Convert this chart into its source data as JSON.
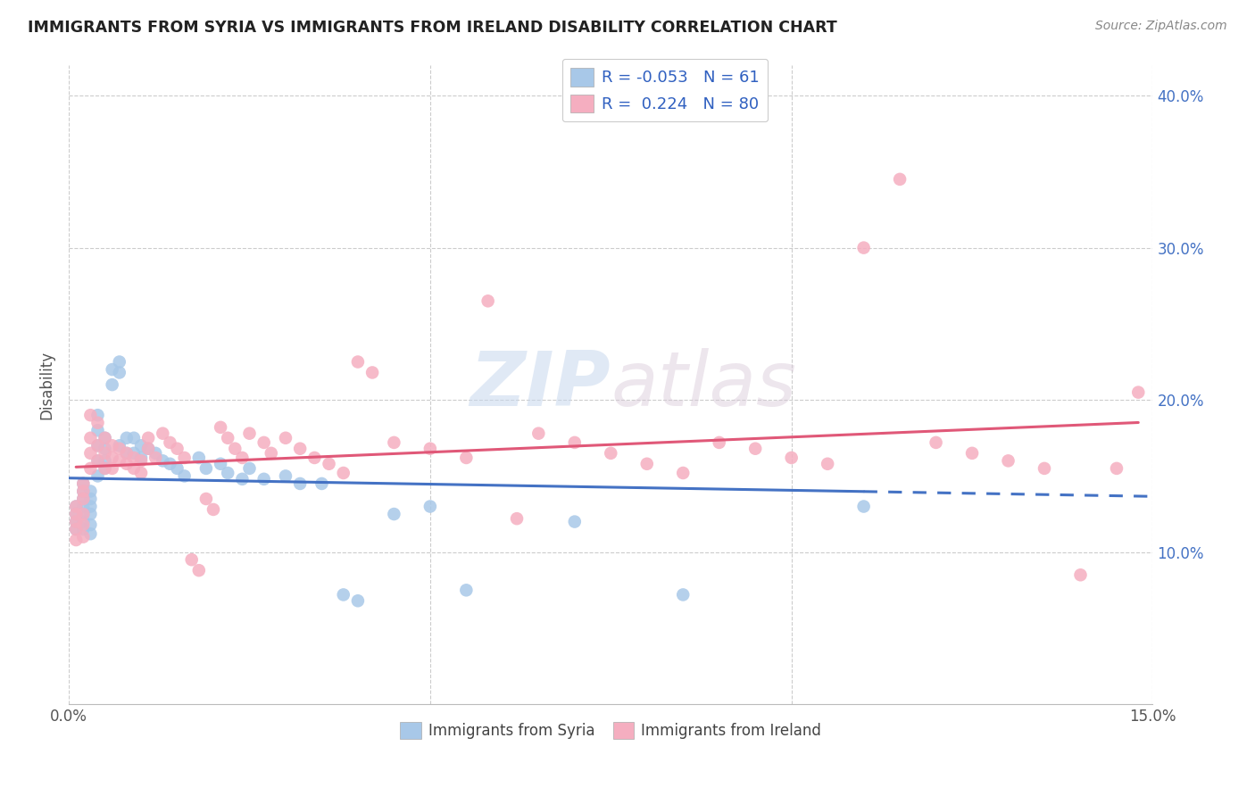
{
  "title": "IMMIGRANTS FROM SYRIA VS IMMIGRANTS FROM IRELAND DISABILITY CORRELATION CHART",
  "source": "Source: ZipAtlas.com",
  "ylabel": "Disability",
  "xlim": [
    0.0,
    0.15
  ],
  "ylim": [
    0.0,
    0.42
  ],
  "syria_color": "#a8c8e8",
  "ireland_color": "#f5aec0",
  "syria_line_color": "#4472c4",
  "ireland_line_color": "#e05878",
  "watermark_text": "ZIPatlas",
  "legend_R_syria": "-0.053",
  "legend_N_syria": "61",
  "legend_R_ireland": "0.224",
  "legend_N_ireland": "80",
  "syria_scatter_x": [
    0.001,
    0.001,
    0.001,
    0.001,
    0.002,
    0.002,
    0.002,
    0.002,
    0.002,
    0.002,
    0.002,
    0.003,
    0.003,
    0.003,
    0.003,
    0.003,
    0.003,
    0.004,
    0.004,
    0.004,
    0.004,
    0.004,
    0.005,
    0.005,
    0.005,
    0.005,
    0.006,
    0.006,
    0.007,
    0.007,
    0.007,
    0.008,
    0.008,
    0.009,
    0.009,
    0.01,
    0.01,
    0.011,
    0.012,
    0.013,
    0.014,
    0.015,
    0.016,
    0.018,
    0.019,
    0.021,
    0.022,
    0.024,
    0.025,
    0.027,
    0.03,
    0.032,
    0.035,
    0.038,
    0.04,
    0.045,
    0.05,
    0.055,
    0.07,
    0.085,
    0.11
  ],
  "syria_scatter_y": [
    0.13,
    0.125,
    0.12,
    0.115,
    0.145,
    0.14,
    0.135,
    0.13,
    0.125,
    0.12,
    0.115,
    0.14,
    0.135,
    0.13,
    0.125,
    0.118,
    0.112,
    0.19,
    0.18,
    0.17,
    0.16,
    0.15,
    0.175,
    0.168,
    0.16,
    0.155,
    0.22,
    0.21,
    0.225,
    0.218,
    0.17,
    0.175,
    0.165,
    0.175,
    0.165,
    0.17,
    0.162,
    0.168,
    0.165,
    0.16,
    0.158,
    0.155,
    0.15,
    0.162,
    0.155,
    0.158,
    0.152,
    0.148,
    0.155,
    0.148,
    0.15,
    0.145,
    0.145,
    0.072,
    0.068,
    0.125,
    0.13,
    0.075,
    0.12,
    0.072,
    0.13
  ],
  "ireland_scatter_x": [
    0.001,
    0.001,
    0.001,
    0.001,
    0.001,
    0.002,
    0.002,
    0.002,
    0.002,
    0.002,
    0.002,
    0.003,
    0.003,
    0.003,
    0.003,
    0.004,
    0.004,
    0.004,
    0.005,
    0.005,
    0.005,
    0.006,
    0.006,
    0.006,
    0.007,
    0.007,
    0.008,
    0.008,
    0.009,
    0.009,
    0.01,
    0.01,
    0.011,
    0.011,
    0.012,
    0.013,
    0.014,
    0.015,
    0.016,
    0.017,
    0.018,
    0.019,
    0.02,
    0.021,
    0.022,
    0.023,
    0.024,
    0.025,
    0.027,
    0.028,
    0.03,
    0.032,
    0.034,
    0.036,
    0.038,
    0.04,
    0.042,
    0.045,
    0.05,
    0.055,
    0.058,
    0.062,
    0.065,
    0.07,
    0.075,
    0.08,
    0.085,
    0.09,
    0.095,
    0.1,
    0.105,
    0.11,
    0.115,
    0.12,
    0.125,
    0.13,
    0.135,
    0.14,
    0.145,
    0.148
  ],
  "ireland_scatter_y": [
    0.13,
    0.125,
    0.12,
    0.115,
    0.108,
    0.145,
    0.14,
    0.135,
    0.125,
    0.118,
    0.11,
    0.19,
    0.175,
    0.165,
    0.155,
    0.185,
    0.17,
    0.16,
    0.175,
    0.165,
    0.155,
    0.17,
    0.162,
    0.155,
    0.168,
    0.16,
    0.165,
    0.158,
    0.162,
    0.155,
    0.16,
    0.152,
    0.175,
    0.168,
    0.162,
    0.178,
    0.172,
    0.168,
    0.162,
    0.095,
    0.088,
    0.135,
    0.128,
    0.182,
    0.175,
    0.168,
    0.162,
    0.178,
    0.172,
    0.165,
    0.175,
    0.168,
    0.162,
    0.158,
    0.152,
    0.225,
    0.218,
    0.172,
    0.168,
    0.162,
    0.265,
    0.122,
    0.178,
    0.172,
    0.165,
    0.158,
    0.152,
    0.172,
    0.168,
    0.162,
    0.158,
    0.3,
    0.345,
    0.172,
    0.165,
    0.16,
    0.155,
    0.085,
    0.155,
    0.205
  ]
}
